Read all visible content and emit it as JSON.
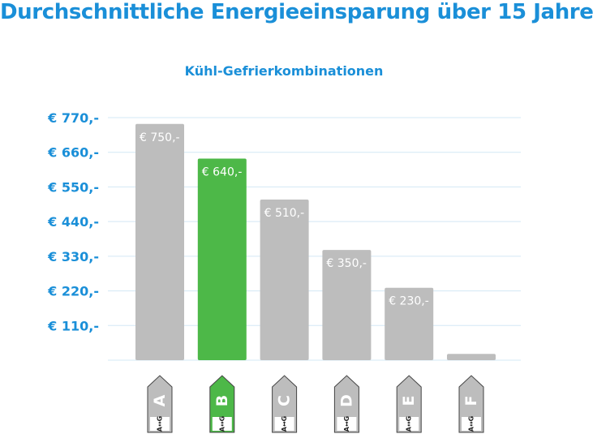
{
  "title": "Durchschnittliche Energieeinsparung über 15 Jahre",
  "subtitle": "Kühl-Gefrierkombinationen",
  "chart_data": {
    "type": "bar",
    "title": "Durchschnittliche Energieeinsparung über 15 Jahre",
    "subtitle": "Kühl-Gefrierkombinationen",
    "categories": [
      "A",
      "B",
      "C",
      "D",
      "E",
      "F"
    ],
    "values": [
      750,
      640,
      510,
      350,
      230,
      20
    ],
    "value_labels": [
      "€ 750,-",
      "€ 640,-",
      "€ 510,-",
      "€ 350,-",
      "€ 230,-",
      ""
    ],
    "highlight_category": "B",
    "highlight_color": "#4db848",
    "bar_color": "#bdbdbd",
    "yticks": [
      110,
      220,
      330,
      440,
      550,
      660,
      770
    ],
    "ytick_labels": [
      "€ 110,-",
      "€ 220,-",
      "€ 330,-",
      "€ 440,-",
      "€ 550,-",
      "€ 660,-",
      "€ 770,-"
    ],
    "ylim": [
      0,
      770
    ],
    "grid": true,
    "label_badge_text": "A↔G",
    "xlabel": "",
    "ylabel": ""
  },
  "colors": {
    "title": "#1a8fd8",
    "grid": "#d3e8f5",
    "value_text": "#ffffff",
    "tag_text": "#ffffff",
    "badge_text": "#222222"
  }
}
